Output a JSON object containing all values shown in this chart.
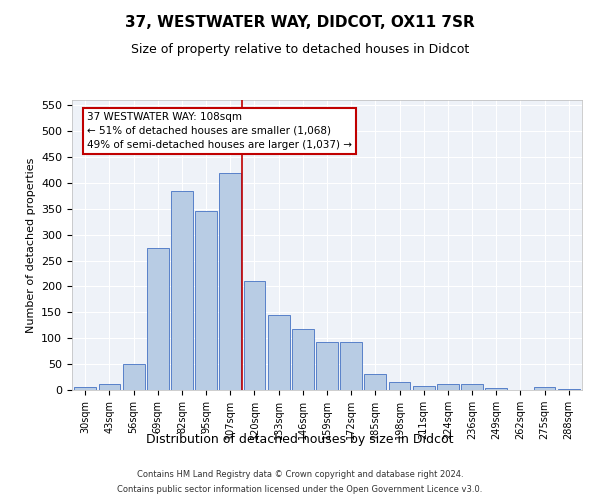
{
  "title": "37, WESTWATER WAY, DIDCOT, OX11 7SR",
  "subtitle": "Size of property relative to detached houses in Didcot",
  "xlabel": "Distribution of detached houses by size in Didcot",
  "ylabel": "Number of detached properties",
  "categories": [
    "30sqm",
    "43sqm",
    "56sqm",
    "69sqm",
    "82sqm",
    "95sqm",
    "107sqm",
    "120sqm",
    "133sqm",
    "146sqm",
    "159sqm",
    "172sqm",
    "185sqm",
    "198sqm",
    "211sqm",
    "224sqm",
    "236sqm",
    "249sqm",
    "262sqm",
    "275sqm",
    "288sqm"
  ],
  "values": [
    5,
    12,
    50,
    275,
    385,
    345,
    420,
    210,
    145,
    117,
    93,
    93,
    30,
    16,
    7,
    12,
    12,
    4,
    0,
    5,
    2
  ],
  "bar_color": "#b8cce4",
  "bar_edge_color": "#4472c4",
  "vline_x": 6.5,
  "vline_color": "#c00000",
  "annotation_line1": "37 WESTWATER WAY: 108sqm",
  "annotation_line2": "← 51% of detached houses are smaller (1,068)",
  "annotation_line3": "49% of semi-detached houses are larger (1,037) →",
  "annotation_box_color": "#ffffff",
  "annotation_box_edge_color": "#c00000",
  "ylim": [
    0,
    560
  ],
  "yticks": [
    0,
    50,
    100,
    150,
    200,
    250,
    300,
    350,
    400,
    450,
    500,
    550
  ],
  "bg_color": "#eef2f8",
  "footer1": "Contains HM Land Registry data © Crown copyright and database right 2024.",
  "footer2": "Contains public sector information licensed under the Open Government Licence v3.0."
}
